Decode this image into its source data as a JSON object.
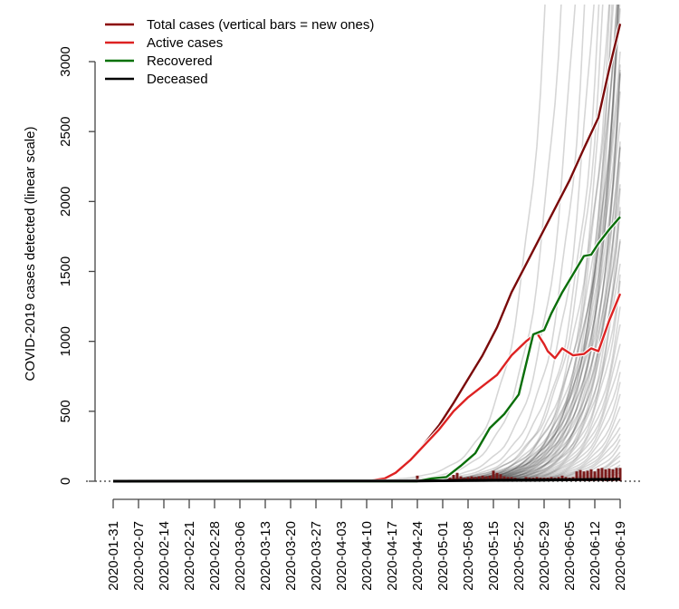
{
  "chart_data": {
    "type": "line",
    "title": "",
    "xlabel": "",
    "ylabel": "COVID-2019 cases detected (linear scale)",
    "ylim": [
      0,
      3300
    ],
    "xlim": [
      "2020-01-31",
      "2020-06-19"
    ],
    "grid": false,
    "legend_position": "top-left",
    "y_ticks": [
      0,
      500,
      1000,
      1500,
      2000,
      2500,
      3000
    ],
    "y_tick_labels": [
      "0",
      "500",
      "1000",
      "1500",
      "2000",
      "2500",
      "3000"
    ],
    "x_tick_labels": [
      "2020-01-31",
      "2020-02-07",
      "2020-02-14",
      "2020-02-21",
      "2020-02-28",
      "2020-03-06",
      "2020-03-13",
      "2020-03-20",
      "2020-03-27",
      "2020-04-03",
      "2020-04-10",
      "2020-04-17",
      "2020-04-24",
      "2020-05-01",
      "2020-05-08",
      "2020-05-15",
      "2020-05-22",
      "2020-05-29",
      "2020-06-05",
      "2020-06-12",
      "2020-06-19"
    ],
    "legend": [
      {
        "label": "Total cases (vertical bars = new ones)",
        "color": "#8b0000"
      },
      {
        "label": "Active cases",
        "color": "#dd2222"
      },
      {
        "label": "Recovered",
        "color": "#007000"
      },
      {
        "label": "Deceased",
        "color": "#000000"
      }
    ],
    "series": [
      {
        "name": "Total cases",
        "color": "#7a0a0a",
        "day": [
          0,
          70,
          75,
          78,
          82,
          86,
          90,
          94,
          98,
          102,
          106,
          110,
          114,
          118,
          122,
          126,
          130,
          134,
          137,
          140
        ],
        "values": [
          0,
          0,
          20,
          60,
          150,
          270,
          400,
          560,
          730,
          900,
          1100,
          1350,
          1550,
          1750,
          1950,
          2150,
          2380,
          2600,
          2950,
          3270
        ]
      },
      {
        "name": "Active cases",
        "color": "#dd2222",
        "day": [
          0,
          70,
          75,
          78,
          82,
          86,
          90,
          94,
          98,
          102,
          106,
          110,
          114,
          117,
          119,
          120,
          122,
          124,
          127,
          130,
          132,
          134,
          137,
          140
        ],
        "values": [
          0,
          0,
          20,
          60,
          150,
          260,
          370,
          500,
          600,
          680,
          760,
          900,
          1000,
          1060,
          980,
          930,
          880,
          950,
          900,
          910,
          950,
          930,
          1150,
          1340
        ]
      },
      {
        "name": "Recovered",
        "color": "#0a6e0a",
        "day": [
          0,
          84,
          88,
          92,
          96,
          100,
          104,
          108,
          112,
          116,
          119,
          121,
          124,
          127,
          130,
          132,
          134,
          137,
          140
        ],
        "values": [
          0,
          0,
          20,
          30,
          110,
          200,
          380,
          480,
          620,
          1050,
          1080,
          1200,
          1350,
          1480,
          1610,
          1620,
          1700,
          1800,
          1890
        ]
      },
      {
        "name": "Deceased",
        "color": "#000000",
        "day": [
          0,
          84,
          100,
          120,
          140
        ],
        "values": [
          0,
          2,
          6,
          10,
          14
        ]
      },
      {
        "name": "New cases",
        "type": "bar",
        "color": "#7a1a1a",
        "day": [
          84,
          92,
          93,
          94,
          95,
          96,
          97,
          98,
          99,
          100,
          101,
          102,
          103,
          104,
          105,
          106,
          107,
          108,
          109,
          110,
          111,
          112,
          113,
          114,
          115,
          116,
          117,
          118,
          119,
          120,
          121,
          122,
          123,
          124,
          125,
          126,
          127,
          128,
          129,
          130,
          131,
          132,
          133,
          134,
          135,
          136,
          137,
          138,
          139,
          140
        ],
        "values": [
          40,
          10,
          25,
          45,
          60,
          35,
          25,
          30,
          35,
          30,
          35,
          40,
          35,
          40,
          75,
          60,
          50,
          35,
          30,
          30,
          25,
          20,
          10,
          30,
          25,
          25,
          30,
          25,
          25,
          25,
          30,
          25,
          30,
          40,
          30,
          25,
          30,
          70,
          80,
          70,
          75,
          85,
          70,
          90,
          95,
          85,
          90,
          85,
          95,
          95
        ]
      }
    ],
    "background_series": {
      "description": "Other locations (grey curves), approximate exponential growth from start day",
      "start_day": [
        57,
        62,
        66,
        68,
        70,
        70,
        71,
        72,
        72,
        73,
        74,
        74,
        75,
        75,
        76,
        76,
        77,
        77,
        78,
        78,
        79,
        79,
        80,
        80,
        81,
        81,
        82,
        82,
        83,
        84,
        84,
        85,
        86,
        86,
        87,
        88,
        88,
        89,
        90,
        90,
        91,
        92,
        92,
        93,
        94,
        95,
        96,
        97,
        98,
        99,
        100,
        102,
        104,
        106,
        108,
        110,
        112,
        114,
        116
      ],
      "value_at_end": [
        50000,
        30000,
        18000,
        12000,
        9000,
        6000,
        7000,
        5200,
        4500,
        4800,
        4200,
        3800,
        4000,
        3600,
        3500,
        3400,
        3800,
        3200,
        3000,
        3600,
        2800,
        3300,
        2600,
        3100,
        2500,
        2900,
        2300,
        2700,
        2400,
        2200,
        2000,
        2100,
        1900,
        2200,
        1700,
        1600,
        1800,
        1500,
        1400,
        1200,
        1100,
        1000,
        900,
        800,
        700,
        600,
        520,
        450,
        400,
        350,
        300,
        250,
        200,
        180,
        150,
        120,
        100,
        80,
        60
      ]
    }
  }
}
